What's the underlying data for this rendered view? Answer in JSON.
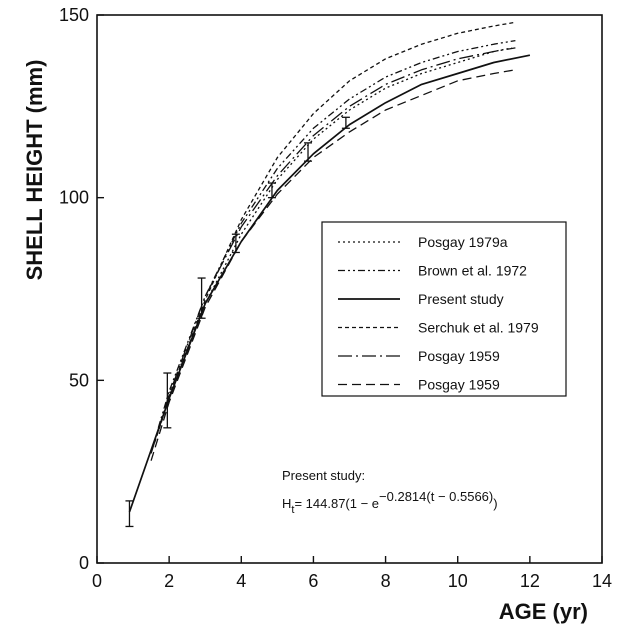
{
  "chart_data": {
    "type": "line",
    "xlabel": "AGE (yr)",
    "ylabel": "SHELL HEIGHT (mm)",
    "xlim": [
      0,
      14
    ],
    "ylim": [
      0,
      150
    ],
    "xticks": [
      "0",
      "2",
      "4",
      "6",
      "8",
      "10",
      "12",
      "14"
    ],
    "yticks": [
      "0",
      "50",
      "100",
      "150"
    ],
    "grid": false,
    "legend_position": "center-right",
    "series": [
      {
        "name": "Posgay 1979a",
        "style": "dotted",
        "x": [
          1.7,
          2,
          3,
          4,
          5,
          6,
          7,
          8,
          9,
          10,
          11,
          11.5
        ],
        "y": [
          36,
          46,
          71,
          90,
          105,
          116,
          124,
          130,
          134,
          137,
          140,
          141
        ]
      },
      {
        "name": "Brown et al. 1972",
        "style": "dashdotdot",
        "x": [
          1.7,
          2,
          3,
          4,
          5,
          6,
          7,
          8,
          9,
          10,
          11,
          11.6
        ],
        "y": [
          37,
          47,
          73,
          93,
          108,
          119,
          127,
          133,
          137,
          140,
          142,
          143
        ]
      },
      {
        "name": "Present study",
        "style": "solid",
        "x": [
          0.9,
          2,
          3,
          4,
          5,
          6,
          7,
          8,
          9,
          10,
          11,
          12
        ],
        "y": [
          14,
          45,
          71,
          88,
          102,
          112,
          120,
          126,
          131,
          134,
          137,
          139
        ]
      },
      {
        "name": "Serchuk et al. 1979",
        "style": "dashed-short",
        "x": [
          1.6,
          2,
          3,
          4,
          5,
          6,
          7,
          8,
          9,
          10,
          11,
          11.6
        ],
        "y": [
          33,
          45,
          72,
          94,
          111,
          123,
          132,
          138,
          142,
          145,
          147,
          148
        ]
      },
      {
        "name": "Posgay 1959",
        "style": "longdash-dot",
        "x": [
          1.5,
          2,
          3,
          4,
          5,
          6,
          7,
          8,
          9,
          10,
          11,
          11.6
        ],
        "y": [
          30,
          46,
          73,
          92,
          106,
          117,
          125,
          131,
          135,
          138,
          140,
          141
        ]
      },
      {
        "name": "Posgay 1959",
        "style": "dashed-long",
        "x": [
          1.5,
          2,
          3,
          4,
          5,
          6,
          7,
          8,
          9,
          10,
          11,
          11.6
        ],
        "y": [
          28,
          44,
          70,
          88,
          101,
          111,
          118,
          124,
          128,
          132,
          134,
          135
        ]
      }
    ],
    "error_bars": [
      {
        "x": 0.9,
        "y": 14,
        "low": 10,
        "high": 17
      },
      {
        "x": 1.95,
        "y": 45,
        "low": 37,
        "high": 52
      },
      {
        "x": 2.9,
        "y": 72,
        "low": 67,
        "high": 78
      },
      {
        "x": 3.85,
        "y": 87,
        "low": 85,
        "high": 90
      },
      {
        "x": 4.85,
        "y": 102,
        "low": 100,
        "high": 104
      },
      {
        "x": 5.85,
        "y": 112,
        "low": 110,
        "high": 115
      },
      {
        "x": 6.9,
        "y": 121,
        "low": 119,
        "high": 122
      }
    ],
    "annotation": {
      "line1": "Present study:",
      "line2_prefix": "H",
      "line2_sub": "t",
      "line2_main": "= 144.87(1 − e",
      "line2_exp": "−0.2814(t − 0.5566)",
      "line2_close": ")"
    }
  }
}
